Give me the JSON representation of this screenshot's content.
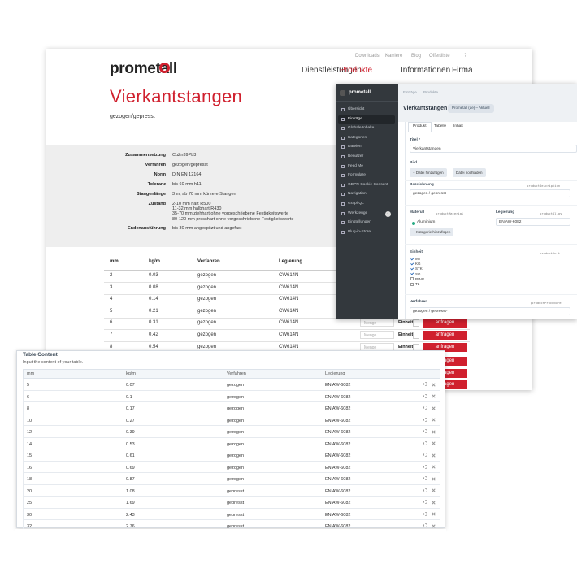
{
  "website": {
    "logo": "prometall",
    "top_nav": [
      "Downloads",
      "Karriere",
      "Blog",
      "Offertliste",
      "?"
    ],
    "main_nav": [
      "Dienstleistungen",
      "Produkte",
      "Informationen",
      "Firma"
    ],
    "title": "Vierkantstangen",
    "subtitle": "gezogen/gepresst",
    "specs": [
      {
        "label": "Zusammensetzung",
        "lines": [
          "CuZn39Pb3"
        ]
      },
      {
        "label": "Verfahren",
        "lines": [
          "gezogen/gepresst"
        ]
      },
      {
        "label": "Norm",
        "lines": [
          "DIN EN 12164"
        ]
      },
      {
        "label": "Toleranz",
        "lines": [
          "bis 60 mm h11"
        ]
      },
      {
        "label": "Stangenlänge",
        "lines": [
          "3 m, ab 70 mm kürzere Stangen"
        ]
      },
      {
        "label": "Zustand",
        "lines": [
          "2-10 mm hart R500",
          "11-32 mm halbhart R430",
          "35-70 mm ziehhart ohne vorgeschriebene Festigkeitswerte",
          "80-120 mm presshart ohne vorgeschriebene Festigkeitswerte"
        ]
      },
      {
        "label": "Endenausführung",
        "lines": [
          "bis 30 mm angespitzt und angefast"
        ]
      }
    ],
    "table": {
      "headers": [
        "mm",
        "kg/m",
        "Verfahren",
        "Legierung"
      ],
      "rows": [
        [
          "2",
          "0.03",
          "gezogen",
          "CW614N"
        ],
        [
          "3",
          "0.08",
          "gezogen",
          "CW614N"
        ],
        [
          "4",
          "0.14",
          "gezogen",
          "CW614N"
        ],
        [
          "5",
          "0.21",
          "gezogen",
          "CW614N"
        ],
        [
          "6",
          "0.31",
          "gezogen",
          "CW614N"
        ],
        [
          "7",
          "0.42",
          "gezogen",
          "CW614N"
        ],
        [
          "8",
          "0.54",
          "gezogen",
          "CW614N"
        ]
      ]
    },
    "order": {
      "quantity": "Menge",
      "unit": "Einheit",
      "button": "anfragen"
    }
  },
  "cms": {
    "logo": "prometall",
    "menu": [
      "Übersicht",
      "Einträge",
      "Globale Inhalte",
      "Kategorien",
      "Dateien",
      "Benutzer",
      "Feed Me",
      "Formulare",
      "GDPR Cookie Consent",
      "Navigation",
      "GraphQL",
      "Werkzeuge",
      "Einstellungen",
      "Plug-in-Store"
    ],
    "badge": "1",
    "breadcrumbs": [
      "Einträge",
      "Produkte"
    ],
    "heading": "Vierkantstangen",
    "site_select": "Prometall (de) – Aktuell",
    "tabs": [
      "Produkt",
      "Tabelle",
      "Inhalt"
    ],
    "fields": {
      "title_label": "Titel *",
      "title_value": "Vierkantstangen",
      "image_label": "Bild",
      "add_file": "+ Datei hinzufügen",
      "upload": "Datei hochladen",
      "description_label": "Bezeichnung",
      "description_handle": "productDescription",
      "description_value": "gezogen / gepresst",
      "material_label": "Material",
      "material_handle": "productMaterial",
      "material_value": "Aluminium",
      "add_category": "+ Kategorie hinzufügen",
      "alloy_label": "Legierung",
      "alloy_handle": "productAlloy",
      "alloy_value": "EN AW-6082",
      "unit_label": "Einheit",
      "unit_handle": "productUnit",
      "units": [
        {
          "label": "MT",
          "checked": true
        },
        {
          "label": "KG",
          "checked": true
        },
        {
          "label": "STK",
          "checked": true
        },
        {
          "label": "SG",
          "checked": true
        },
        {
          "label": "RING",
          "checked": false
        },
        {
          "label": "TL",
          "checked": false
        }
      ],
      "procedure_label": "Verfahren",
      "procedure_handle": "productProcedure",
      "procedure_value": "gezogen / gepresst*"
    }
  },
  "table_content": {
    "title": "Table Content",
    "instructions": "Input the content of your table.",
    "headers": [
      "mm",
      "kg/m",
      "Verfahren",
      "Legierung"
    ],
    "rows": [
      [
        "5",
        "0.07",
        "gezogen",
        "EN AW-6082"
      ],
      [
        "6",
        "0.1",
        "gezogen",
        "EN AW-6082"
      ],
      [
        "8",
        "0.17",
        "gezogen",
        "EN AW-6082"
      ],
      [
        "10",
        "0.27",
        "gezogen",
        "EN AW-6082"
      ],
      [
        "12",
        "0.39",
        "gezogen",
        "EN AW-6082"
      ],
      [
        "14",
        "0.53",
        "gezogen",
        "EN AW-6082"
      ],
      [
        "15",
        "0.61",
        "gezogen",
        "EN AW-6082"
      ],
      [
        "16",
        "0.69",
        "gezogen",
        "EN AW-6082"
      ],
      [
        "18",
        "0.87",
        "gezogen",
        "EN AW-6082"
      ],
      [
        "20",
        "1.08",
        "gepresst",
        "EN AW-6082"
      ],
      [
        "25",
        "1.69",
        "gepresst",
        "EN AW-6082"
      ],
      [
        "30",
        "2.43",
        "gepresst",
        "EN AW-6082"
      ],
      [
        "32",
        "2.76",
        "gepresst",
        "EN AW-6082"
      ]
    ]
  }
}
